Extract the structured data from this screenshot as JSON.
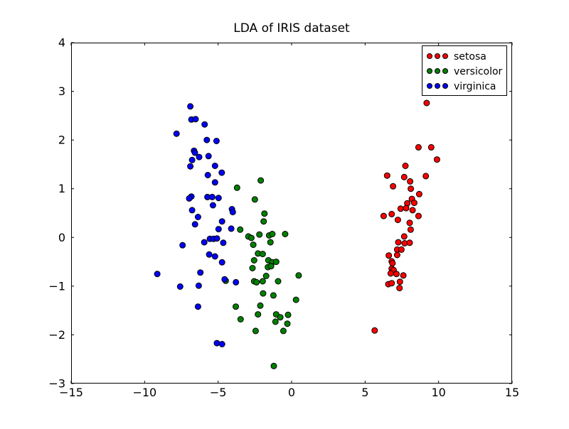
{
  "chart_data": {
    "type": "scatter",
    "title": "LDA of IRIS dataset",
    "xlabel": "",
    "ylabel": "",
    "xlim": [
      -15,
      15
    ],
    "ylim": [
      -3,
      4
    ],
    "xticks": [
      -15,
      -10,
      -5,
      0,
      5,
      10,
      15
    ],
    "yticks": [
      -3,
      -2,
      -1,
      0,
      1,
      2,
      3,
      4
    ],
    "grid": false,
    "background": "#ffffff",
    "axes_edge_color": "#000000",
    "marker_edge_color": "#000000",
    "legend_position": "upper right",
    "series": [
      {
        "name": "setosa",
        "color": "#ff0000",
        "points": [
          [
            9.19,
            2.76
          ],
          [
            8.63,
            1.85
          ],
          [
            9.5,
            1.85
          ],
          [
            9.89,
            1.6
          ],
          [
            7.74,
            1.47
          ],
          [
            6.5,
            1.27
          ],
          [
            7.66,
            1.24
          ],
          [
            9.13,
            1.26
          ],
          [
            8.06,
            1.15
          ],
          [
            6.9,
            1.05
          ],
          [
            8.11,
            1.0
          ],
          [
            8.68,
            0.89
          ],
          [
            8.18,
            0.79
          ],
          [
            8.34,
            0.71
          ],
          [
            7.87,
            0.7
          ],
          [
            7.42,
            0.59
          ],
          [
            7.79,
            0.6
          ],
          [
            8.23,
            0.56
          ],
          [
            6.26,
            0.44
          ],
          [
            6.81,
            0.48
          ],
          [
            7.23,
            0.36
          ],
          [
            8.63,
            0.44
          ],
          [
            8.03,
            0.3
          ],
          [
            8.1,
            0.16
          ],
          [
            7.66,
            0.02
          ],
          [
            7.26,
            -0.1
          ],
          [
            7.69,
            -0.12
          ],
          [
            8.03,
            -0.11
          ],
          [
            7.18,
            -0.25
          ],
          [
            7.47,
            -0.25
          ],
          [
            6.61,
            -0.37
          ],
          [
            7.18,
            -0.36
          ],
          [
            6.81,
            -0.49
          ],
          [
            6.86,
            -0.53
          ],
          [
            6.81,
            -0.64
          ],
          [
            6.94,
            -0.67
          ],
          [
            6.74,
            -0.74
          ],
          [
            7.13,
            -0.75
          ],
          [
            7.6,
            -0.78
          ],
          [
            6.58,
            -0.96
          ],
          [
            6.81,
            -0.94
          ],
          [
            7.37,
            -0.91
          ],
          [
            7.34,
            -1.04
          ],
          [
            5.65,
            -1.91
          ]
        ]
      },
      {
        "name": "versicolor",
        "color": "#008000",
        "points": [
          [
            -2.1,
            1.17
          ],
          [
            -3.71,
            1.02
          ],
          [
            -2.5,
            0.78
          ],
          [
            -1.85,
            0.49
          ],
          [
            -1.9,
            0.33
          ],
          [
            -3.5,
            0.16
          ],
          [
            -2.94,
            0.02
          ],
          [
            -2.74,
            -0.01
          ],
          [
            -2.19,
            0.06
          ],
          [
            -1.53,
            0.04
          ],
          [
            -1.31,
            0.07
          ],
          [
            -0.44,
            0.07
          ],
          [
            -1.44,
            -0.1
          ],
          [
            -2.61,
            -0.15
          ],
          [
            -2.29,
            -0.33
          ],
          [
            -1.97,
            -0.34
          ],
          [
            -2.55,
            -0.47
          ],
          [
            -1.58,
            -0.47
          ],
          [
            -1.32,
            -0.51
          ],
          [
            -1.05,
            -0.5
          ],
          [
            -1.61,
            -0.61
          ],
          [
            -1.4,
            -0.59
          ],
          [
            -2.66,
            -0.63
          ],
          [
            0.48,
            -0.78
          ],
          [
            -1.73,
            -0.79
          ],
          [
            -4.48,
            -0.89
          ],
          [
            -2.55,
            -0.9
          ],
          [
            -2.39,
            -0.92
          ],
          [
            -1.97,
            -0.9
          ],
          [
            -0.92,
            -0.9
          ],
          [
            -1.94,
            -1.15
          ],
          [
            -1.24,
            -1.19
          ],
          [
            0.3,
            -1.28
          ],
          [
            -3.8,
            -1.42
          ],
          [
            -2.13,
            -1.4
          ],
          [
            -2.29,
            -1.58
          ],
          [
            -3.47,
            -1.68
          ],
          [
            -1.05,
            -1.58
          ],
          [
            -0.77,
            -1.64
          ],
          [
            -0.24,
            -1.59
          ],
          [
            -1.1,
            -1.73
          ],
          [
            -0.29,
            -1.77
          ],
          [
            -2.45,
            -1.92
          ],
          [
            -0.56,
            -1.92
          ],
          [
            -1.21,
            -2.64
          ]
        ]
      },
      {
        "name": "virginica",
        "color": "#0000ff",
        "points": [
          [
            -6.89,
            2.69
          ],
          [
            -6.82,
            2.42
          ],
          [
            -6.53,
            2.43
          ],
          [
            -5.92,
            2.32
          ],
          [
            -7.83,
            2.13
          ],
          [
            -5.77,
            2.0
          ],
          [
            -5.11,
            1.98
          ],
          [
            -6.64,
            1.78
          ],
          [
            -6.58,
            1.74
          ],
          [
            -6.29,
            1.65
          ],
          [
            -5.65,
            1.67
          ],
          [
            -6.77,
            1.59
          ],
          [
            -6.89,
            1.46
          ],
          [
            -5.21,
            1.47
          ],
          [
            -5.7,
            1.28
          ],
          [
            -4.75,
            1.33
          ],
          [
            -5.21,
            1.13
          ],
          [
            -6.82,
            0.84
          ],
          [
            -6.97,
            0.8
          ],
          [
            -5.73,
            0.83
          ],
          [
            -5.4,
            0.83
          ],
          [
            -4.97,
            0.81
          ],
          [
            -5.35,
            0.66
          ],
          [
            -6.77,
            0.56
          ],
          [
            -4.06,
            0.58
          ],
          [
            -4.0,
            0.52
          ],
          [
            -6.37,
            0.42
          ],
          [
            -6.57,
            0.27
          ],
          [
            -4.73,
            0.33
          ],
          [
            -4.97,
            0.17
          ],
          [
            -4.11,
            0.18
          ],
          [
            -5.94,
            -0.1
          ],
          [
            -5.56,
            -0.03
          ],
          [
            -5.32,
            -0.03
          ],
          [
            -5.08,
            -0.02
          ],
          [
            -4.65,
            -0.11
          ],
          [
            -7.42,
            -0.16
          ],
          [
            -5.61,
            -0.35
          ],
          [
            -5.21,
            -0.39
          ],
          [
            -4.73,
            -0.51
          ],
          [
            -9.14,
            -0.75
          ],
          [
            -6.21,
            -0.72
          ],
          [
            -4.56,
            -0.86
          ],
          [
            -3.79,
            -0.92
          ],
          [
            -7.58,
            -1.01
          ],
          [
            -6.32,
            -0.99
          ],
          [
            -6.37,
            -1.42
          ],
          [
            -5.08,
            -2.17
          ],
          [
            -4.73,
            -2.19
          ]
        ]
      }
    ]
  }
}
